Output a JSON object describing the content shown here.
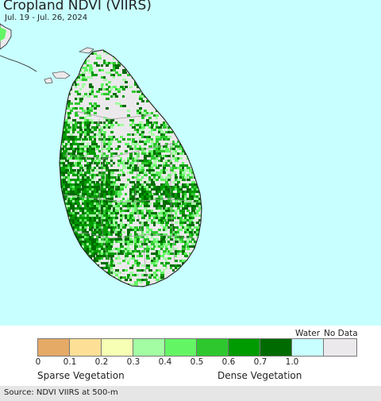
{
  "map": {
    "title": "Cropland NDVI (VIIRS)",
    "subtitle": "Jul. 19 - Jul. 26, 2024",
    "region": "Sri Lanka",
    "ocean_color": "#c8ffff",
    "land_no_data_color": "#ece9ec"
  },
  "legend": {
    "water_label": "Water",
    "nodata_label": "No Data",
    "classes": [
      {
        "name": "0-0.1",
        "color": "#e4aa66"
      },
      {
        "name": "0.1-0.2",
        "color": "#fde096"
      },
      {
        "name": "0.2-0.3",
        "color": "#f6ffb4"
      },
      {
        "name": "0.3-0.4",
        "color": "#a3fda3"
      },
      {
        "name": "0.4-0.5",
        "color": "#64f564"
      },
      {
        "name": "0.5-0.6",
        "color": "#2ec82e"
      },
      {
        "name": "0.6-0.7",
        "color": "#009b00"
      },
      {
        "name": "0.7-1.0",
        "color": "#006b00"
      },
      {
        "name": "water",
        "color": "#c8ffff"
      },
      {
        "name": "no-data",
        "color": "#ece9ec"
      }
    ],
    "ticks": [
      "0",
      "0.1",
      "0.2",
      "0.3",
      "0.4",
      "0.5",
      "0.6",
      "0.7",
      "1.0"
    ],
    "sparse_label": "Sparse Vegetation",
    "dense_label": "Dense Vegetation"
  },
  "footer": {
    "source": "Source: NDVI VIIRS at 500-m"
  }
}
